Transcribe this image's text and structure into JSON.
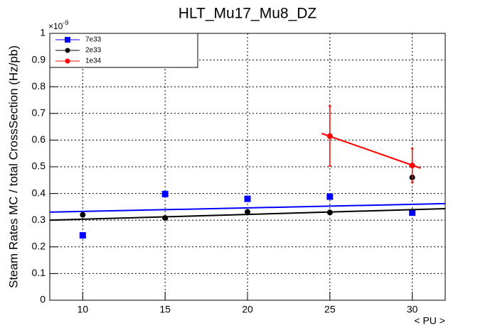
{
  "chart_data": {
    "type": "scatter",
    "title": "HLT_Mu17_Mu8_DZ",
    "x_label": "< PU >",
    "y_label": "Steam Rates MC / total CrossSection (Hz/pb)",
    "y_multiplier_base": "×10",
    "y_multiplier_exponent": "-9",
    "xlim": [
      8,
      32
    ],
    "ylim": [
      0,
      1
    ],
    "xticks": [
      10,
      15,
      20,
      25,
      30
    ],
    "yticks": [
      0,
      0.1,
      0.2,
      0.3,
      0.4,
      0.5,
      0.6,
      0.7,
      0.8,
      0.9,
      1
    ],
    "grid": true,
    "legend": "top-left",
    "series": [
      {
        "name": "7e33",
        "color": "#0000ff",
        "marker": "square",
        "x": [
          10,
          15,
          20,
          25,
          30
        ],
        "values": [
          0.243,
          0.398,
          0.38,
          0.388,
          0.328
        ],
        "fit_x": [
          8,
          32
        ],
        "fit_y": [
          0.33,
          0.362
        ]
      },
      {
        "name": "2e33",
        "color": "#000000",
        "marker": "circle",
        "x": [
          10,
          15,
          20,
          25,
          30
        ],
        "values": [
          0.32,
          0.308,
          0.331,
          0.329,
          0.46
        ],
        "fit_x": [
          8,
          32
        ],
        "fit_y": [
          0.3,
          0.343
        ]
      },
      {
        "name": "1e34",
        "color": "#ff0000",
        "marker": "circle",
        "x": [
          25,
          30
        ],
        "values": [
          0.615,
          0.505
        ],
        "errors": [
          0.112,
          0.063
        ],
        "fit_x": [
          24.5,
          30.5
        ],
        "fit_y": [
          0.625,
          0.495
        ]
      }
    ]
  }
}
